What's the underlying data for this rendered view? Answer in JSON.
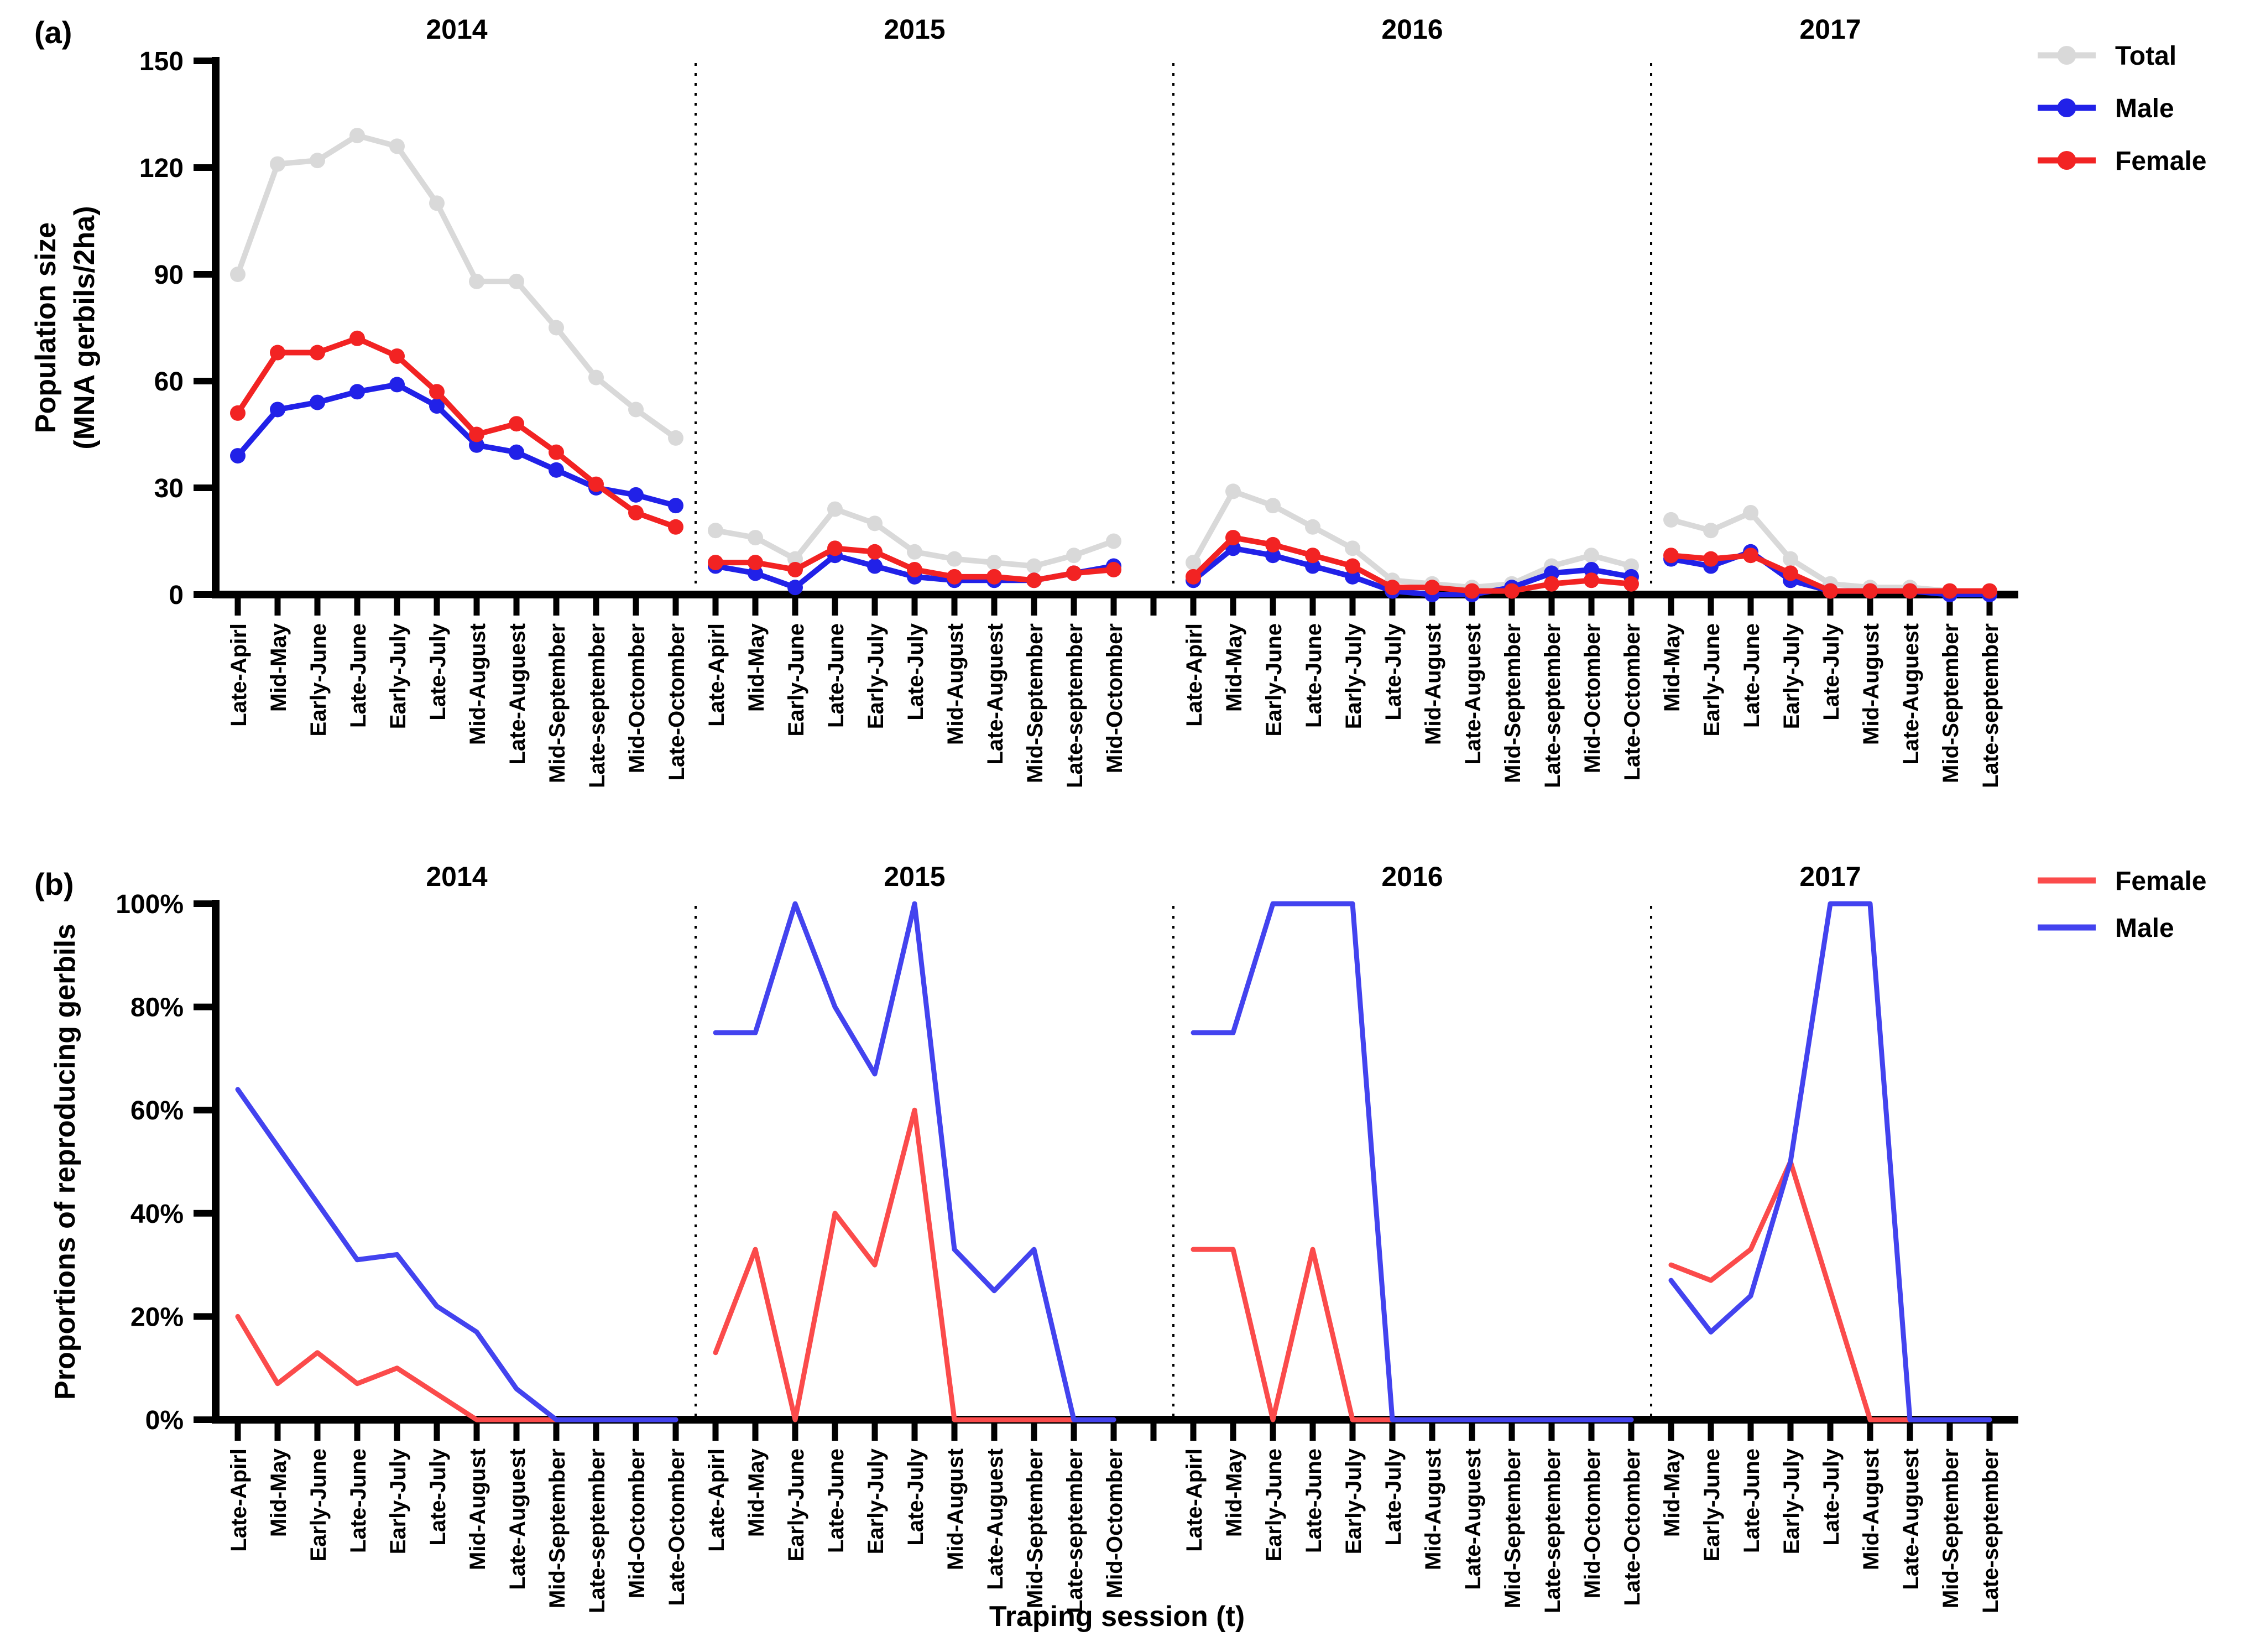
{
  "figure": {
    "panel_a_label": "(a)",
    "panel_b_label": "(b)",
    "background": "#ffffff",
    "axis_color": "#000000"
  },
  "chart_data": [
    {
      "type": "line",
      "panel": "a",
      "ylabel_lines": [
        "Population size",
        "(MNA gerbils/2ha)"
      ],
      "ylim": [
        0,
        150
      ],
      "yticks": [
        0,
        30,
        60,
        90,
        120,
        150
      ],
      "grid": false,
      "markers": true,
      "legend_position": "top-right-outside",
      "legend": [
        {
          "label": "Total",
          "color": "#d9d9d9"
        },
        {
          "label": "Male",
          "color": "#2121e8"
        },
        {
          "label": "Female",
          "color": "#f22323"
        }
      ],
      "groups": [
        {
          "year": "2014",
          "sessions": [
            "Late-Apirl",
            "Mid-May",
            "Early-June",
            "Late-June",
            "Early-July",
            "Late-July",
            "Mid-August",
            "Late-Auguest",
            "Mid-September",
            "Late-september",
            "Mid-Octomber",
            "Late-Octomber"
          ],
          "series": {
            "total": [
              90,
              121,
              122,
              129,
              126,
              110,
              88,
              88,
              75,
              61,
              52,
              44
            ],
            "male": [
              39,
              52,
              54,
              57,
              59,
              53,
              42,
              40,
              35,
              30,
              28,
              25
            ],
            "female": [
              51,
              68,
              68,
              72,
              67,
              57,
              45,
              48,
              40,
              31,
              23,
              19
            ]
          }
        },
        {
          "year": "2015",
          "phantom_ticks": 1,
          "sessions": [
            "Late-Apirl",
            "Mid-May",
            "Early-June",
            "Late-June",
            "Early-July",
            "Late-July",
            "Mid-August",
            "Late-Auguest",
            "Mid-September",
            "Late-september",
            "Mid-Octomber"
          ],
          "series": {
            "total": [
              18,
              16,
              10,
              24,
              20,
              12,
              10,
              9,
              8,
              11,
              15
            ],
            "male": [
              8,
              6,
              2,
              11,
              8,
              5,
              4,
              4,
              4,
              6,
              8
            ],
            "female": [
              9,
              9,
              7,
              13,
              12,
              7,
              5,
              5,
              4,
              6,
              7
            ]
          }
        },
        {
          "year": "2016",
          "sessions": [
            "Late-Apirl",
            "Mid-May",
            "Early-June",
            "Late-June",
            "Early-July",
            "Late-July",
            "Mid-August",
            "Late-Auguest",
            "Mid-September",
            "Late-september",
            "Mid-Octomber",
            "Late-Octomber"
          ],
          "series": {
            "total": [
              9,
              29,
              25,
              19,
              13,
              4,
              3,
              2,
              3,
              8,
              11,
              8
            ],
            "male": [
              4,
              13,
              11,
              8,
              5,
              1,
              0,
              0,
              2,
              6,
              7,
              5
            ],
            "female": [
              5,
              16,
              14,
              11,
              8,
              2,
              2,
              1,
              1,
              3,
              4,
              3
            ]
          }
        },
        {
          "year": "2017",
          "sessions": [
            "Mid-May",
            "Early-June",
            "Late-June",
            "Early-July",
            "Late-July",
            "Mid-August",
            "Late-Auguest",
            "Mid-September",
            "Late-september"
          ],
          "series": {
            "total": [
              21,
              18,
              23,
              10,
              3,
              2,
              2,
              1,
              1
            ],
            "male": [
              10,
              8,
              12,
              4,
              1,
              1,
              1,
              0,
              0
            ],
            "female": [
              11,
              10,
              11,
              6,
              1,
              1,
              1,
              1,
              1
            ]
          }
        }
      ]
    },
    {
      "type": "line",
      "panel": "b",
      "ylabel_lines": [
        "Proportions of reproducing gerbils"
      ],
      "xlabel": "Traping session (t)",
      "ylim": [
        0,
        100
      ],
      "ytick_labels": [
        "0%",
        "20%",
        "40%",
        "60%",
        "80%",
        "100%"
      ],
      "grid": false,
      "markers": false,
      "legend_position": "top-right-outside",
      "legend": [
        {
          "label": "Female",
          "color": "#fb4b4b"
        },
        {
          "label": "Male",
          "color": "#4343ef"
        }
      ],
      "groups": [
        {
          "year": "2014",
          "sessions": [
            "Late-Apirl",
            "Mid-May",
            "Early-June",
            "Late-June",
            "Early-July",
            "Late-July",
            "Mid-August",
            "Late-Auguest",
            "Mid-September",
            "Late-september",
            "Mid-Octomber",
            "Late-Octomber"
          ],
          "series": {
            "female": [
              20,
              7,
              13,
              7,
              10,
              5,
              0,
              0,
              0,
              0,
              0,
              0
            ],
            "male": [
              64,
              53,
              42,
              31,
              32,
              22,
              17,
              6,
              0,
              0,
              0,
              0
            ]
          }
        },
        {
          "year": "2015",
          "phantom_ticks": 1,
          "sessions": [
            "Late-Apirl",
            "Mid-May",
            "Early-June",
            "Late-June",
            "Early-July",
            "Late-July",
            "Mid-August",
            "Late-Auguest",
            "Mid-September",
            "Late-september",
            "Mid-Octomber"
          ],
          "series": {
            "female": [
              13,
              33,
              0,
              40,
              30,
              60,
              0,
              0,
              0,
              0,
              0
            ],
            "male": [
              75,
              75,
              100,
              80,
              67,
              100,
              33,
              25,
              33,
              0,
              0
            ]
          }
        },
        {
          "year": "2016",
          "sessions": [
            "Late-Apirl",
            "Mid-May",
            "Early-June",
            "Late-June",
            "Early-July",
            "Late-July",
            "Mid-August",
            "Late-Auguest",
            "Mid-September",
            "Late-september",
            "Mid-Octomber",
            "Late-Octomber"
          ],
          "series": {
            "female": [
              33,
              33,
              0,
              33,
              0,
              0,
              0,
              0,
              0,
              0,
              0,
              0
            ],
            "male": [
              75,
              75,
              100,
              100,
              100,
              0,
              0,
              0,
              0,
              0,
              0,
              0
            ]
          }
        },
        {
          "year": "2017",
          "sessions": [
            "Mid-May",
            "Early-June",
            "Late-June",
            "Early-July",
            "Late-July",
            "Mid-August",
            "Late-Auguest",
            "Mid-September",
            "Late-september"
          ],
          "series": {
            "female": [
              30,
              27,
              33,
              50,
              25,
              0,
              0,
              0,
              0
            ],
            "male": [
              27,
              17,
              24,
              50,
              100,
              100,
              0,
              0,
              0
            ]
          }
        }
      ]
    }
  ]
}
